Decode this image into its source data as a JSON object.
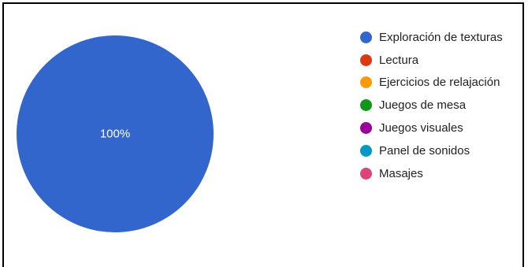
{
  "chart_data": {
    "type": "pie",
    "title": "",
    "slices": [
      {
        "label": "Exploración de texturas",
        "value": 100,
        "color": "#3366cc",
        "data_label": "100%"
      },
      {
        "label": "Lectura",
        "value": 0,
        "color": "#dc3912"
      },
      {
        "label": "Ejercicios de relajación",
        "value": 0,
        "color": "#ff9900"
      },
      {
        "label": "Juegos de mesa",
        "value": 0,
        "color": "#109618"
      },
      {
        "label": "Juegos visuales",
        "value": 0,
        "color": "#990099"
      },
      {
        "label": "Panel de sonidos",
        "value": 0,
        "color": "#0099c6"
      },
      {
        "label": "Masajes",
        "value": 0,
        "color": "#dd4477"
      }
    ],
    "legend_position": "right"
  }
}
